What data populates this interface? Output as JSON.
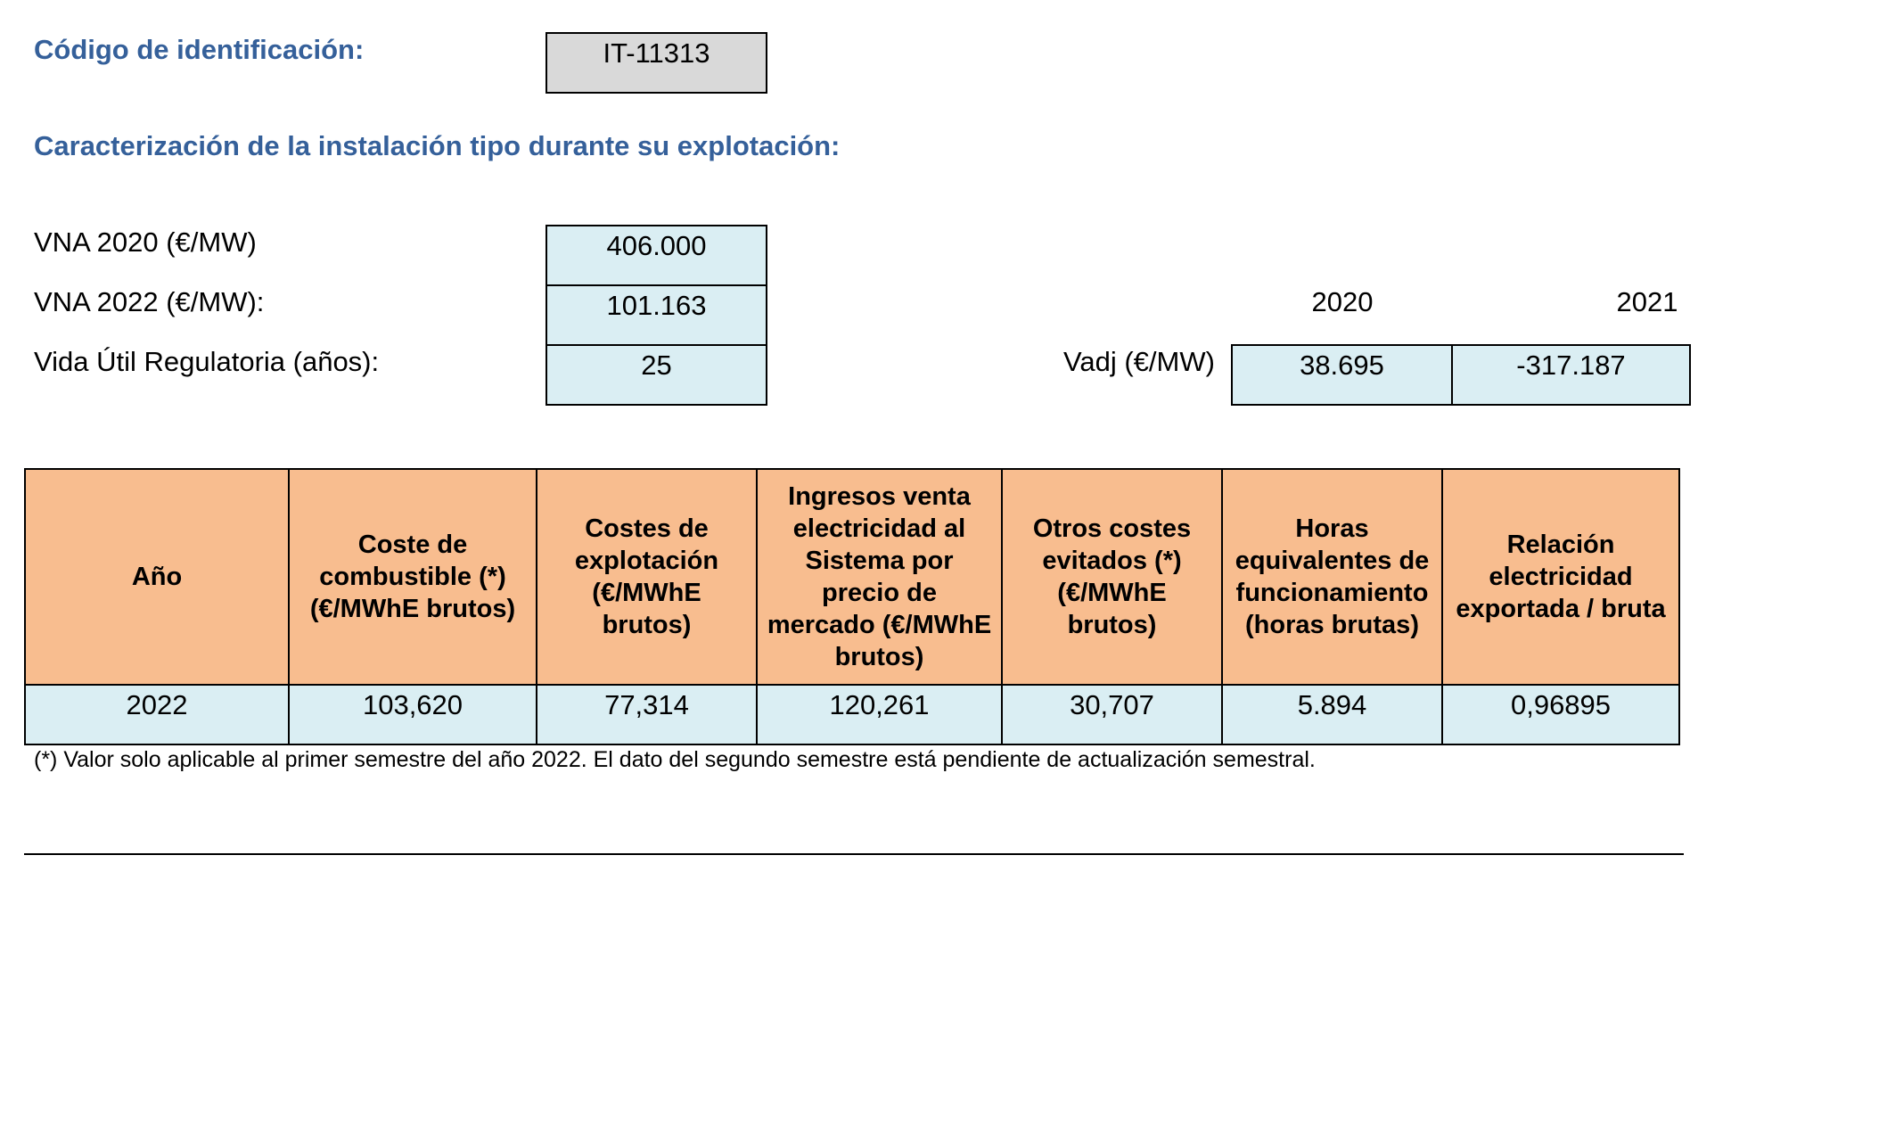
{
  "id_section": {
    "label": "Código de identificación:",
    "value": "IT-11313"
  },
  "characterization_title": "Caracterización de la instalación tipo durante su explotación:",
  "params": [
    {
      "label": "VNA 2020 (€/MW)",
      "value": "406.000"
    },
    {
      "label": "VNA 2022 (€/MW):",
      "value": "101.163"
    },
    {
      "label": "Vida Útil Regulatoria (años):",
      "value": "25"
    }
  ],
  "vadj": {
    "label": "Vadj (€/MW)",
    "years": [
      "2020",
      "2021"
    ],
    "values": [
      "38.695",
      "-317.187"
    ]
  },
  "table": {
    "headers": [
      "Año",
      "Coste de combustible (*) (€/MWhE brutos)",
      "Costes de explotación (€/MWhE brutos)",
      "Ingresos venta electricidad al Sistema por precio de mercado (€/MWhE brutos)",
      "Otros costes evitados (*) (€/MWhE brutos)",
      "Horas equivalentes de funcionamiento (horas brutas)",
      "Relación electricidad exportada / bruta"
    ],
    "rows": [
      [
        "2022",
        "103,620",
        "77,314",
        "120,261",
        "30,707",
        "5.894",
        "0,96895"
      ]
    ]
  },
  "footnote": "(*) Valor solo aplicable al primer semestre del año 2022. El dato del segundo semestre está pendiente de actualización semestral.",
  "colors": {
    "heading_blue": "#35609a",
    "header_orange": "#f8bd8f",
    "cell_blue": "#daeef3",
    "id_gray": "#d9d9d9"
  }
}
